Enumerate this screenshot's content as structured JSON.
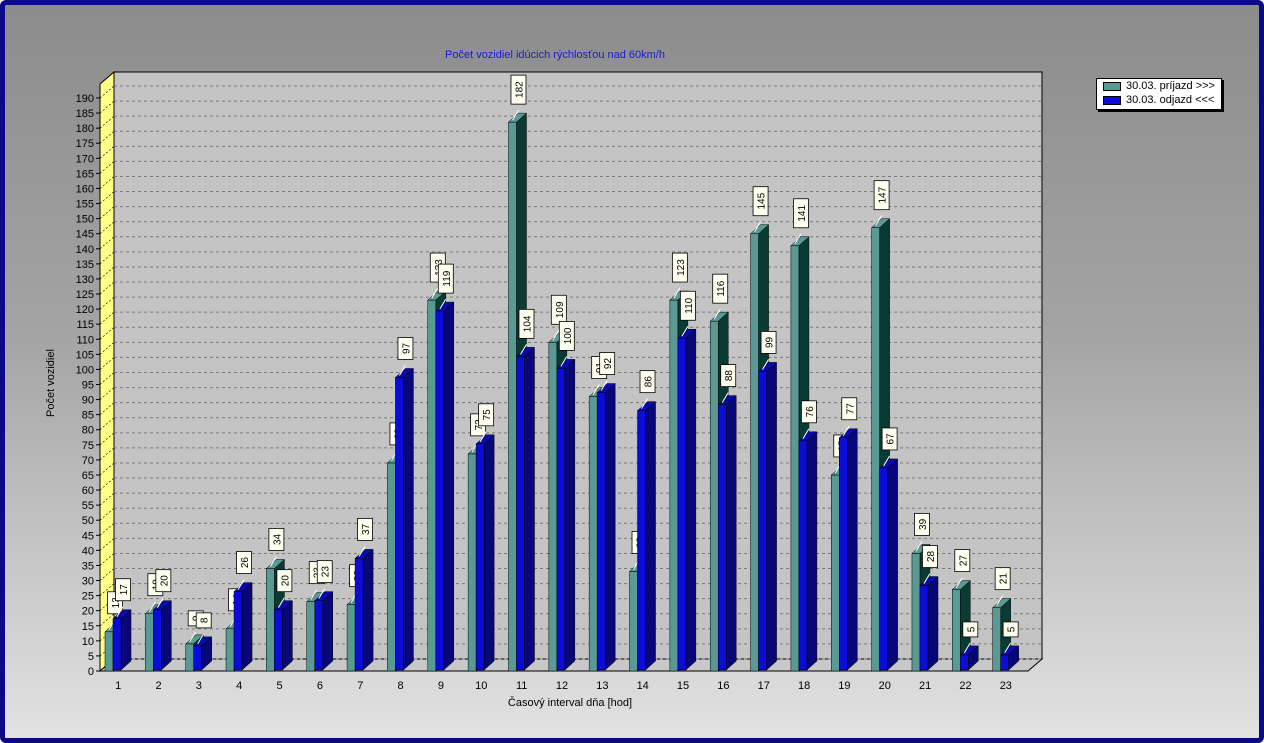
{
  "chart_data": {
    "type": "bar",
    "title": "Počet vozidiel idúcich rýchlosťou nad 60km/h",
    "xlabel": "Časový interval dňa [hod]",
    "ylabel": "Počet vozidiel",
    "ylim": [
      0,
      190
    ],
    "ytick_step": 5,
    "grid": true,
    "legend_position": "top-right",
    "categories": [
      "1",
      "2",
      "3",
      "4",
      "5",
      "6",
      "7",
      "8",
      "9",
      "10",
      "11",
      "12",
      "13",
      "14",
      "15",
      "16",
      "17",
      "18",
      "19",
      "20",
      "21",
      "22",
      "23"
    ],
    "series": [
      {
        "name": "30.03.  príjazd >>>",
        "color": "#5a9a94",
        "values": [
          13,
          19,
          9,
          14,
          34,
          23,
          22,
          69,
          123,
          72,
          182,
          109,
          91,
          33,
          123,
          116,
          145,
          141,
          65,
          147,
          39,
          27,
          21
        ]
      },
      {
        "name": "30.03.  odjazd <<<",
        "color": "#0c0cd8",
        "values": [
          17,
          20,
          8,
          26,
          20,
          23,
          37,
          97,
          119,
          75,
          104,
          100,
          92,
          86,
          110,
          88,
          99,
          76,
          77,
          67,
          28,
          5,
          5
        ]
      }
    ]
  }
}
